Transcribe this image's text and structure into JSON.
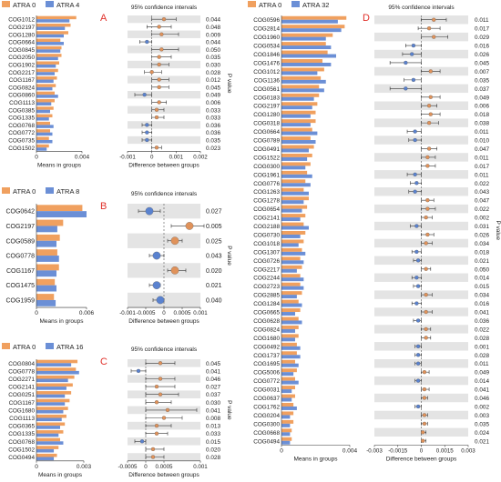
{
  "colors": {
    "orange": "#f0a05f",
    "blue": "#6b8fd6",
    "orange_dot": "#e0925a",
    "blue_dot": "#5a82cf",
    "stripe": "#e4e4e4",
    "panel_letter": "#e0302a"
  },
  "chart_data": [
    {
      "panel": "A",
      "type": "bar",
      "groups": [
        "ATRA 0",
        "ATRA 4"
      ],
      "xlabel_left": "Means in groups",
      "xlabel_right": "Difference between groups",
      "ci_title": "95% confidence intervals",
      "pvalue_label": "P value",
      "left_ticks": [
        "0",
        "0.004"
      ],
      "right_ticks": [
        "-0.001",
        "0",
        "0.001",
        "0.002"
      ],
      "rows": [
        {
          "cog": "COG1012",
          "a": 0.0035,
          "b": 0.0029,
          "diff": 0.0005,
          "lo": 0.0,
          "hi": 0.001,
          "p": "0.044"
        },
        {
          "cog": "COG2197",
          "a": 0.003,
          "b": 0.0025,
          "diff": 0.0003,
          "lo": -0.0002,
          "hi": 0.0008,
          "p": "0.048"
        },
        {
          "cog": "COG1280",
          "a": 0.0028,
          "b": 0.0024,
          "diff": 0.0004,
          "lo": 0.0,
          "hi": 0.0011,
          "p": "0.009"
        },
        {
          "cog": "COG0664",
          "a": 0.0021,
          "b": 0.0024,
          "diff": -0.0002,
          "lo": -0.0005,
          "hi": 0.0,
          "p": "0.044"
        },
        {
          "cog": "COG0845",
          "a": 0.0022,
          "b": 0.0021,
          "diff": 0.0004,
          "lo": 0.0,
          "hi": 0.0011,
          "p": "0.050"
        },
        {
          "cog": "COG2050",
          "a": 0.0022,
          "b": 0.0019,
          "diff": 0.0003,
          "lo": 0.0,
          "hi": 0.0008,
          "p": "0.035"
        },
        {
          "cog": "COG1902",
          "a": 0.002,
          "b": 0.0017,
          "diff": 0.0003,
          "lo": 0.0,
          "hi": 0.0007,
          "p": "0.030"
        },
        {
          "cog": "COG2217",
          "a": 0.0019,
          "b": 0.0016,
          "diff": 0.0,
          "lo": -0.0003,
          "hi": 0.0004,
          "p": "0.028"
        },
        {
          "cog": "COG1167",
          "a": 0.0018,
          "b": 0.0015,
          "diff": 0.0003,
          "lo": 0.0,
          "hi": 0.0007,
          "p": "0.012"
        },
        {
          "cog": "COG0824",
          "a": 0.0017,
          "b": 0.0014,
          "diff": 0.0003,
          "lo": 0.0,
          "hi": 0.0007,
          "p": "0.045"
        },
        {
          "cog": "COG0860",
          "a": 0.0016,
          "b": 0.0019,
          "diff": -0.0003,
          "lo": -0.0007,
          "hi": 0.0,
          "p": "0.049"
        },
        {
          "cog": "COG1113",
          "a": 0.0016,
          "b": 0.0013,
          "diff": 0.0003,
          "lo": 0.0,
          "hi": 0.0006,
          "p": "0.006"
        },
        {
          "cog": "COG0385",
          "a": 0.0015,
          "b": 0.0012,
          "diff": 0.0002,
          "lo": 0.0,
          "hi": 0.0005,
          "p": "0.033"
        },
        {
          "cog": "COG1335",
          "a": 0.0014,
          "b": 0.0011,
          "diff": 0.0002,
          "lo": 0.0,
          "hi": 0.0005,
          "p": "0.033"
        },
        {
          "cog": "COG0768",
          "a": 0.0012,
          "b": 0.0015,
          "diff": -0.0002,
          "lo": -0.0004,
          "hi": 0.0,
          "p": "0.036"
        },
        {
          "cog": "COG0772",
          "a": 0.0012,
          "b": 0.0014,
          "diff": -0.0002,
          "lo": -0.0004,
          "hi": 0.0,
          "p": "0.036"
        },
        {
          "cog": "COG0735",
          "a": 0.0011,
          "b": 0.0014,
          "diff": -0.0002,
          "lo": -0.0004,
          "hi": 0.0,
          "p": "0.035"
        },
        {
          "cog": "COG1502",
          "a": 0.0011,
          "b": 0.0009,
          "diff": 0.0002,
          "lo": 0.0,
          "hi": 0.0004,
          "p": "0.023"
        }
      ]
    },
    {
      "panel": "B",
      "type": "bar",
      "groups": [
        "ATRA 0",
        "ATRA 8"
      ],
      "xlabel_left": "Means in groups",
      "xlabel_right": "Difference between groups",
      "ci_title": "95% confidence intervals",
      "pvalue_label": "P value",
      "left_ticks": [
        "0",
        "0.006"
      ],
      "right_ticks": [
        "-0.001",
        "-0.0005",
        "0",
        "0.0005",
        "0.001"
      ],
      "rows": [
        {
          "cog": "COG0642",
          "a": 0.0055,
          "b": 0.006,
          "diff": -0.0004,
          "lo": -0.0007,
          "hi": -0.0001,
          "p": "0.027"
        },
        {
          "cog": "COG2197",
          "a": 0.0032,
          "b": 0.0025,
          "diff": 0.0007,
          "lo": 0.0002,
          "hi": 0.0011,
          "p": "0.005"
        },
        {
          "cog": "COG0589",
          "a": 0.0028,
          "b": 0.0024,
          "diff": 0.0003,
          "lo": 0.0001,
          "hi": 0.0005,
          "p": "0.025"
        },
        {
          "cog": "COG0778",
          "a": 0.0025,
          "b": 0.0027,
          "diff": -0.0002,
          "lo": -0.0004,
          "hi": 0.0,
          "p": "0.043"
        },
        {
          "cog": "COG1167",
          "a": 0.0027,
          "b": 0.0024,
          "diff": 0.0003,
          "lo": 0.0001,
          "hi": 0.0006,
          "p": "0.020"
        },
        {
          "cog": "COG1475",
          "a": 0.0022,
          "b": 0.0024,
          "diff": -0.0002,
          "lo": -0.0004,
          "hi": -0.0001,
          "p": "0.021"
        },
        {
          "cog": "COG1959",
          "a": 0.0021,
          "b": 0.0023,
          "diff": -0.0001,
          "lo": -0.0003,
          "hi": 0.0,
          "p": "0.040"
        }
      ]
    },
    {
      "panel": "C",
      "type": "bar",
      "groups": [
        "ATRA 0",
        "ATRA 16"
      ],
      "xlabel_left": "Means in groups",
      "xlabel_right": "Difference between groups",
      "ci_title": "95% confidence intervals",
      "pvalue_label": "P value",
      "left_ticks": [
        "0",
        "0.003"
      ],
      "right_ticks": [
        "-0.0005",
        "0",
        "0.0005",
        "0.001",
        "0.0015"
      ],
      "rows": [
        {
          "cog": "COG0804",
          "a": 0.0026,
          "b": 0.0022,
          "diff": 0.0004,
          "lo": 0.0,
          "hi": 0.0008,
          "p": "0.045"
        },
        {
          "cog": "COG0778",
          "a": 0.0025,
          "b": 0.0027,
          "diff": -0.0002,
          "lo": -0.0004,
          "hi": 0.0,
          "p": "0.041"
        },
        {
          "cog": "COG2271",
          "a": 0.0024,
          "b": 0.002,
          "diff": 0.0004,
          "lo": 0.0,
          "hi": 0.0008,
          "p": "0.046"
        },
        {
          "cog": "COG2141",
          "a": 0.0023,
          "b": 0.0019,
          "diff": 0.0003,
          "lo": 0.0,
          "hi": 0.0008,
          "p": "0.027"
        },
        {
          "cog": "COG0251",
          "a": 0.0022,
          "b": 0.0018,
          "diff": 0.0004,
          "lo": 0.0,
          "hi": 0.0009,
          "p": "0.037"
        },
        {
          "cog": "COG1167",
          "a": 0.0021,
          "b": 0.0018,
          "diff": 0.0003,
          "lo": 0.0,
          "hi": 0.0007,
          "p": "0.030"
        },
        {
          "cog": "COG1680",
          "a": 0.002,
          "b": 0.0017,
          "diff": 0.0006,
          "lo": 0.0,
          "hi": 0.0014,
          "p": "0.041"
        },
        {
          "cog": "COG1113",
          "a": 0.0019,
          "b": 0.0016,
          "diff": 0.0005,
          "lo": 0.0,
          "hi": 0.001,
          "p": "0.008"
        },
        {
          "cog": "COG0365",
          "a": 0.0018,
          "b": 0.0015,
          "diff": 0.0003,
          "lo": 0.0,
          "hi": 0.0007,
          "p": "0.013"
        },
        {
          "cog": "COG1335",
          "a": 0.0017,
          "b": 0.0014,
          "diff": 0.0003,
          "lo": 0.0,
          "hi": 0.0006,
          "p": "0.033"
        },
        {
          "cog": "COG0768",
          "a": 0.0015,
          "b": 0.0017,
          "diff": -0.0001,
          "lo": -0.0003,
          "hi": 0.0,
          "p": "0.015"
        },
        {
          "cog": "COG1502",
          "a": 0.0014,
          "b": 0.0011,
          "diff": 0.0002,
          "lo": 0.0,
          "hi": 0.0005,
          "p": "0.020"
        },
        {
          "cog": "COG0494",
          "a": 0.0013,
          "b": 0.0011,
          "diff": 0.0002,
          "lo": 0.0,
          "hi": 0.0005,
          "p": "0.028"
        }
      ]
    },
    {
      "panel": "D",
      "type": "bar",
      "groups": [
        "ATRA 0",
        "ATRA 32"
      ],
      "xlabel_left": "Means in groups",
      "xlabel_right": "Difference between groups",
      "ci_title": "95% confidence intervals",
      "pvalue_label": "P value",
      "left_ticks": [
        "0",
        "0.004"
      ],
      "right_ticks": [
        "-0.003",
        "-0.0015",
        "0",
        "0.0015",
        "0.003"
      ],
      "rows": [
        {
          "cog": "COG0596",
          "a": 0.0038,
          "b": 0.0033,
          "diff": 0.0008,
          "lo": 0.0,
          "hi": 0.0016,
          "p": "0.011"
        },
        {
          "cog": "COG2814",
          "a": 0.0037,
          "b": 0.0035,
          "diff": 0.0005,
          "lo": -0.0002,
          "hi": 0.0012,
          "p": "0.017"
        },
        {
          "cog": "COG1960",
          "a": 0.003,
          "b": 0.0026,
          "diff": 0.0008,
          "lo": 0.0,
          "hi": 0.0017,
          "p": "0.029"
        },
        {
          "cog": "COG0534",
          "a": 0.0026,
          "b": 0.0029,
          "diff": -0.0005,
          "lo": -0.001,
          "hi": 0.0,
          "p": "0.016"
        },
        {
          "cog": "COG1846",
          "a": 0.0027,
          "b": 0.0032,
          "diff": -0.0006,
          "lo": -0.0012,
          "hi": 0.0,
          "p": "0.026"
        },
        {
          "cog": "COG1476",
          "a": 0.0024,
          "b": 0.0029,
          "diff": -0.001,
          "lo": -0.002,
          "hi": 0.0,
          "p": "0.045"
        },
        {
          "cog": "COG1012",
          "a": 0.0025,
          "b": 0.0021,
          "diff": 0.0006,
          "lo": 0.0,
          "hi": 0.0012,
          "p": "0.007"
        },
        {
          "cog": "COG1136",
          "a": 0.0023,
          "b": 0.0026,
          "diff": -0.0005,
          "lo": -0.0011,
          "hi": 0.0,
          "p": "0.035"
        },
        {
          "cog": "COG0561",
          "a": 0.0022,
          "b": 0.0025,
          "diff": -0.001,
          "lo": -0.002,
          "hi": 0.0,
          "p": "0.037"
        },
        {
          "cog": "COG0183",
          "a": 0.0022,
          "b": 0.0019,
          "diff": 0.0006,
          "lo": 0.0,
          "hi": 0.0012,
          "p": "0.049"
        },
        {
          "cog": "COG2197",
          "a": 0.0021,
          "b": 0.0018,
          "diff": 0.0005,
          "lo": 0.0,
          "hi": 0.001,
          "p": "0.006"
        },
        {
          "cog": "COG1280",
          "a": 0.002,
          "b": 0.0017,
          "diff": 0.0006,
          "lo": 0.0,
          "hi": 0.0012,
          "p": "0.018"
        },
        {
          "cog": "COG0318",
          "a": 0.002,
          "b": 0.0017,
          "diff": 0.0005,
          "lo": 0.0,
          "hi": 0.0011,
          "p": "0.038"
        },
        {
          "cog": "COG0664",
          "a": 0.0018,
          "b": 0.0021,
          "diff": -0.0004,
          "lo": -0.0009,
          "hi": 0.0,
          "p": "0.011"
        },
        {
          "cog": "COG0789",
          "a": 0.0017,
          "b": 0.002,
          "diff": -0.0004,
          "lo": -0.0008,
          "hi": 0.0,
          "p": "0.010"
        },
        {
          "cog": "COG0491",
          "a": 0.0019,
          "b": 0.0016,
          "diff": 0.0005,
          "lo": 0.0,
          "hi": 0.001,
          "p": "0.047"
        },
        {
          "cog": "COG1522",
          "a": 0.0018,
          "b": 0.0015,
          "diff": 0.0004,
          "lo": 0.0,
          "hi": 0.0009,
          "p": "0.011"
        },
        {
          "cog": "COG0300",
          "a": 0.0017,
          "b": 0.0014,
          "diff": 0.0004,
          "lo": 0.0,
          "hi": 0.0009,
          "p": "0.017"
        },
        {
          "cog": "COG1961",
          "a": 0.0015,
          "b": 0.0018,
          "diff": -0.0004,
          "lo": -0.0009,
          "hi": 0.0,
          "p": "0.011"
        },
        {
          "cog": "COG0776",
          "a": 0.0014,
          "b": 0.0017,
          "diff": -0.0003,
          "lo": -0.0007,
          "hi": 0.0,
          "p": "0.022"
        },
        {
          "cog": "COG1263",
          "a": 0.0013,
          "b": 0.0016,
          "diff": -0.0004,
          "lo": -0.0008,
          "hi": 0.0,
          "p": "0.043"
        },
        {
          "cog": "COG1278",
          "a": 0.0016,
          "b": 0.0013,
          "diff": 0.0004,
          "lo": 0.0,
          "hi": 0.0008,
          "p": "0.047"
        },
        {
          "cog": "COG0654",
          "a": 0.0015,
          "b": 0.0012,
          "diff": 0.0004,
          "lo": 0.0,
          "hi": 0.0009,
          "p": "0.022"
        },
        {
          "cog": "COG2141",
          "a": 0.0014,
          "b": 0.0011,
          "diff": 0.0003,
          "lo": 0.0,
          "hi": 0.0007,
          "p": "0.002"
        },
        {
          "cog": "COG2188",
          "a": 0.0013,
          "b": 0.0016,
          "diff": -0.0003,
          "lo": -0.0007,
          "hi": 0.0,
          "p": "0.031"
        },
        {
          "cog": "COG0730",
          "a": 0.0014,
          "b": 0.0011,
          "diff": 0.0004,
          "lo": 0.0,
          "hi": 0.0008,
          "p": "0.026"
        },
        {
          "cog": "COG1018",
          "a": 0.0013,
          "b": 0.001,
          "diff": 0.0003,
          "lo": 0.0,
          "hi": 0.0007,
          "p": "0.034"
        },
        {
          "cog": "COG1307",
          "a": 0.0012,
          "b": 0.0014,
          "diff": -0.0003,
          "lo": -0.0006,
          "hi": 0.0,
          "p": "0.018"
        },
        {
          "cog": "COG0726",
          "a": 0.0011,
          "b": 0.0013,
          "diff": -0.0002,
          "lo": -0.0005,
          "hi": 0.0,
          "p": "0.021"
        },
        {
          "cog": "COG2217",
          "a": 0.0012,
          "b": 0.0009,
          "diff": 0.0003,
          "lo": 0.0,
          "hi": 0.0006,
          "p": "0.050"
        },
        {
          "cog": "COG2244",
          "a": 0.0011,
          "b": 0.0013,
          "diff": -0.0003,
          "lo": -0.0006,
          "hi": 0.0,
          "p": "0.014"
        },
        {
          "cog": "COG2723",
          "a": 0.0011,
          "b": 0.0013,
          "diff": -0.0002,
          "lo": -0.0005,
          "hi": 0.0,
          "p": "0.015"
        },
        {
          "cog": "COG2885",
          "a": 0.0012,
          "b": 0.0009,
          "diff": 0.0003,
          "lo": 0.0,
          "hi": 0.0007,
          "p": "0.034"
        },
        {
          "cog": "COG1284",
          "a": 0.001,
          "b": 0.0012,
          "diff": -0.0003,
          "lo": -0.0006,
          "hi": 0.0,
          "p": "0.016"
        },
        {
          "cog": "COG0665",
          "a": 0.0011,
          "b": 0.0008,
          "diff": 0.0003,
          "lo": 0.0,
          "hi": 0.0007,
          "p": "0.041"
        },
        {
          "cog": "COG0628",
          "a": 0.001,
          "b": 0.0012,
          "diff": -0.0002,
          "lo": -0.0005,
          "hi": 0.0,
          "p": "0.036"
        },
        {
          "cog": "COG0824",
          "a": 0.001,
          "b": 0.0008,
          "diff": 0.0003,
          "lo": 0.0,
          "hi": 0.0006,
          "p": "0.022"
        },
        {
          "cog": "COG1680",
          "a": 0.001,
          "b": 0.0008,
          "diff": 0.0003,
          "lo": 0.0,
          "hi": 0.0006,
          "p": "0.028"
        },
        {
          "cog": "COG0492",
          "a": 0.0009,
          "b": 0.0011,
          "diff": -0.0002,
          "lo": -0.0004,
          "hi": 0.0,
          "p": "0.001"
        },
        {
          "cog": "COG1737",
          "a": 0.0009,
          "b": 0.0011,
          "diff": -0.0002,
          "lo": -0.0004,
          "hi": 0.0,
          "p": "0.028"
        },
        {
          "cog": "COG1695",
          "a": 0.0008,
          "b": 0.001,
          "diff": -0.0002,
          "lo": -0.0004,
          "hi": 0.0,
          "p": "0.011"
        },
        {
          "cog": "COG5006",
          "a": 0.0009,
          "b": 0.0007,
          "diff": 0.0002,
          "lo": 0.0,
          "hi": 0.0005,
          "p": "0.049"
        },
        {
          "cog": "COG0772",
          "a": 0.0008,
          "b": 0.001,
          "diff": -0.0002,
          "lo": -0.0004,
          "hi": 0.0,
          "p": "0.014"
        },
        {
          "cog": "COG0031",
          "a": 0.0008,
          "b": 0.0006,
          "diff": 0.0002,
          "lo": 0.0,
          "hi": 0.0005,
          "p": "0.041"
        },
        {
          "cog": "COG0637",
          "a": 0.0008,
          "b": 0.0006,
          "diff": 0.0002,
          "lo": 0.0,
          "hi": 0.0004,
          "p": "0.046"
        },
        {
          "cog": "COG1762",
          "a": 0.0007,
          "b": 0.0009,
          "diff": -0.0002,
          "lo": -0.0004,
          "hi": 0.0,
          "p": "0.002"
        },
        {
          "cog": "COG0204",
          "a": 0.0007,
          "b": 0.0005,
          "diff": 0.0002,
          "lo": 0.0,
          "hi": 0.0004,
          "p": "0.003"
        },
        {
          "cog": "COG0300",
          "a": 0.0007,
          "b": 0.0005,
          "diff": 0.0002,
          "lo": 0.0,
          "hi": 0.0004,
          "p": "0.035"
        },
        {
          "cog": "COG0668",
          "a": 0.0006,
          "b": 0.0005,
          "diff": 0.0001,
          "lo": 0.0,
          "hi": 0.0003,
          "p": "0.024"
        },
        {
          "cog": "COG0494",
          "a": 0.0006,
          "b": 0.0005,
          "diff": 0.0001,
          "lo": 0.0,
          "hi": 0.0003,
          "p": "0.021"
        }
      ]
    }
  ]
}
